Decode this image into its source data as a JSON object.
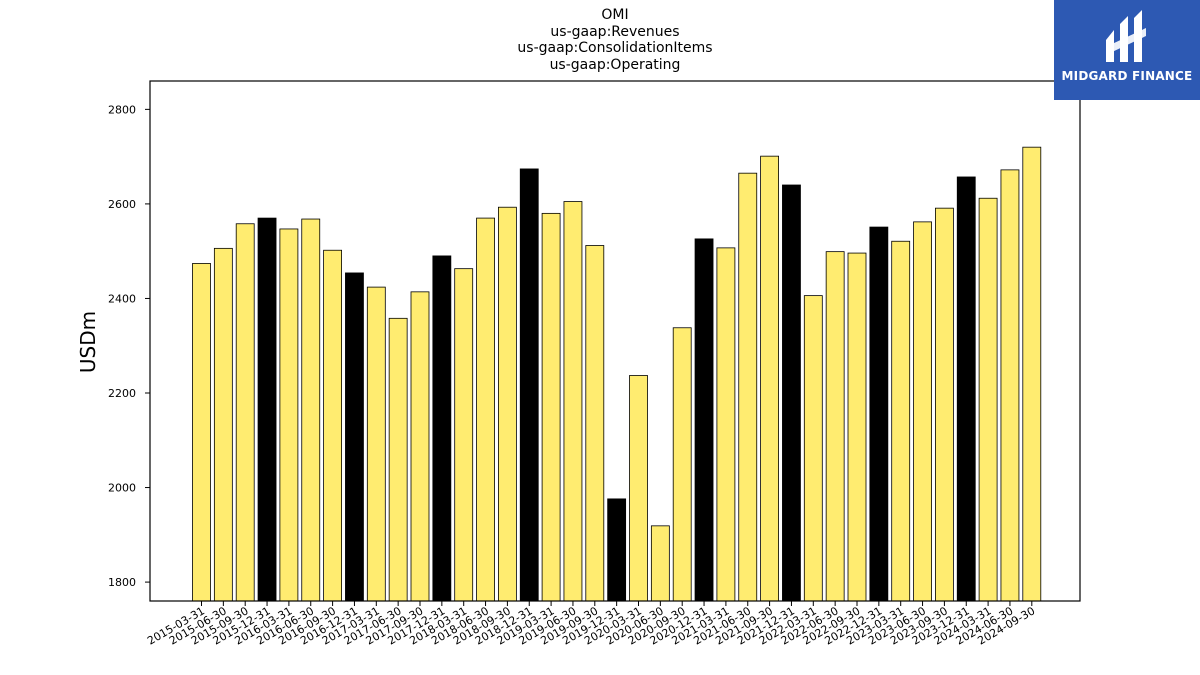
{
  "title_lines": [
    "OMI",
    "us-gaap:Revenues",
    "us-gaap:ConsolidationItems",
    "us-gaap:Operating"
  ],
  "logo": {
    "text": "MIDGARD FINANCE",
    "icon": "midgard-logo-icon",
    "background": "#2d59b3"
  },
  "colors": {
    "regular": "#ffec70",
    "year_end": "#000000",
    "edge": "#000000"
  },
  "chart_data": {
    "type": "bar",
    "title": "OMI\nus-gaap:Revenues\nus-gaap:ConsolidationItems\nus-gaap:Operating",
    "ylabel": "USDm",
    "xlabel": "",
    "ylim": [
      1760,
      2860
    ],
    "yticks": [
      1800,
      2000,
      2200,
      2400,
      2600,
      2800
    ],
    "grid": false,
    "categories": [
      "2015-03-31",
      "2015-06-30",
      "2015-09-30",
      "2015-12-31",
      "2016-03-31",
      "2016-06-30",
      "2016-09-30",
      "2016-12-31",
      "2017-03-31",
      "2017-06-30",
      "2017-09-30",
      "2017-12-31",
      "2018-03-31",
      "2018-06-30",
      "2018-09-30",
      "2018-12-31",
      "2019-03-31",
      "2019-06-30",
      "2019-09-30",
      "2019-12-31",
      "2020-03-31",
      "2020-06-30",
      "2020-09-30",
      "2020-12-31",
      "2021-03-31",
      "2021-06-30",
      "2021-09-30",
      "2021-12-31",
      "2022-03-31",
      "2022-06-30",
      "2022-09-30",
      "2022-12-31",
      "2023-03-31",
      "2023-06-30",
      "2023-09-30",
      "2023-12-31",
      "2024-03-31",
      "2024-06-30",
      "2024-09-30"
    ],
    "values": [
      2474,
      2506,
      2558,
      2570,
      2547,
      2568,
      2502,
      2454,
      2424,
      2358,
      2414,
      2490,
      2463,
      2570,
      2593,
      2674,
      2580,
      2605,
      2512,
      1976,
      2237,
      1919,
      2338,
      2526,
      2507,
      2665,
      2701,
      2640,
      2406,
      2499,
      2496,
      2551,
      2521,
      2562,
      2591,
      2657,
      2612,
      2672,
      2720
    ]
  }
}
